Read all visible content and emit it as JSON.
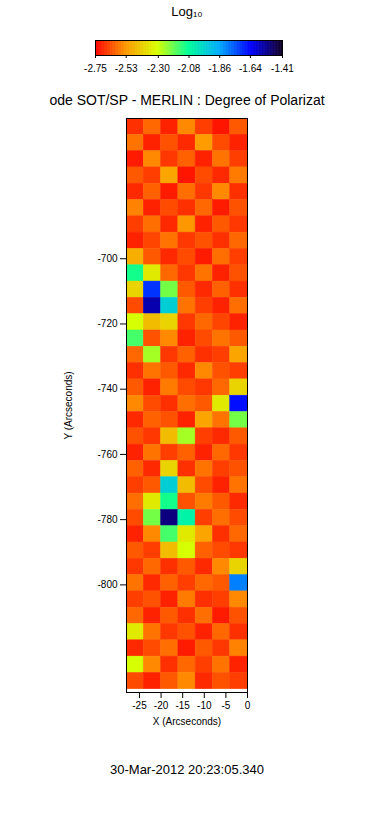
{
  "chart_data": {
    "type": "heatmap",
    "title": "ode SOT/SP - MERLIN : Degree of Polarizat",
    "date": "30-Mar-2012 20:23:05.340",
    "x_label": "X (Arcseconds)",
    "y_label": "Y (Arcseconds)",
    "xlim": [
      -28,
      0
    ],
    "ylim": [
      -833,
      -657
    ],
    "xticks": [
      -25,
      -20,
      -15,
      -10,
      -5,
      0
    ],
    "yticks": [
      -800,
      -780,
      -760,
      -740,
      -720,
      -700
    ],
    "colorbar": {
      "label": "Log₁₀",
      "range": [
        -2.75,
        -1.41
      ],
      "ticks": [
        -2.75,
        -2.53,
        {
          "value": -2.3,
          "label": "-2.30"
        },
        -2.08,
        -1.86,
        -1.64,
        -1.41
      ]
    },
    "x_edges": [
      -28,
      -24,
      -20,
      -16,
      -12,
      -8,
      -4,
      0
    ],
    "y_edges": [
      -657,
      -662,
      -667,
      -672,
      -677,
      -682,
      -687,
      -692,
      -697,
      -702,
      -707,
      -712,
      -717,
      -722,
      -727,
      -732,
      -737,
      -742,
      -747,
      -752,
      -757,
      -762,
      -767,
      -772,
      -777,
      -782,
      -787,
      -792,
      -797,
      -802,
      -807,
      -812,
      -817,
      -822,
      -827,
      -832
    ],
    "z": [
      [
        -2.68,
        -2.6,
        -2.7,
        -2.55,
        -2.66,
        -2.72,
        -2.62
      ],
      [
        -2.58,
        -2.7,
        -2.63,
        -2.69,
        -2.52,
        -2.64,
        -2.7
      ],
      [
        -2.71,
        -2.55,
        -2.67,
        -2.61,
        -2.7,
        -2.58,
        -2.66
      ],
      [
        -2.62,
        -2.66,
        -2.5,
        -2.72,
        -2.64,
        -2.69,
        -2.57
      ],
      [
        -2.69,
        -2.61,
        -2.71,
        -2.59,
        -2.67,
        -2.55,
        -2.68
      ],
      [
        -2.56,
        -2.7,
        -2.64,
        -2.68,
        -2.6,
        -2.71,
        -2.63
      ],
      [
        -2.66,
        -2.59,
        -2.69,
        -2.53,
        -2.7,
        -2.62,
        -2.67
      ],
      [
        -2.7,
        -2.65,
        -2.58,
        -2.67,
        -2.63,
        -2.68,
        -2.6
      ],
      [
        -2.48,
        -2.62,
        -2.69,
        -2.64,
        -2.71,
        -2.59,
        -2.66
      ],
      [
        -2.1,
        -2.35,
        -2.6,
        -2.67,
        -2.58,
        -2.7,
        -2.63
      ],
      [
        -2.4,
        -1.7,
        -2.2,
        -2.62,
        -2.69,
        -2.61,
        -2.68
      ],
      [
        -2.64,
        -1.55,
        -1.95,
        -2.58,
        -2.66,
        -2.7,
        -2.59
      ],
      [
        -2.3,
        -2.45,
        -2.4,
        -2.67,
        -2.6,
        -2.65,
        -2.7
      ],
      [
        -2.15,
        -2.63,
        -2.55,
        -2.7,
        -2.64,
        -2.58,
        -2.62
      ],
      [
        -2.6,
        -2.25,
        -2.67,
        -2.61,
        -2.68,
        -2.66,
        -2.5
      ],
      [
        -2.68,
        -2.58,
        -2.62,
        -2.69,
        -2.55,
        -2.63,
        -2.66
      ],
      [
        -2.62,
        -2.7,
        -2.57,
        -2.64,
        -2.67,
        -2.6,
        -2.4
      ],
      [
        -2.55,
        -2.64,
        -2.68,
        -2.59,
        -2.62,
        -2.35,
        -1.65
      ],
      [
        -2.69,
        -2.61,
        -2.63,
        -2.7,
        -2.5,
        -2.58,
        -2.2
      ],
      [
        -2.63,
        -2.67,
        -2.45,
        -2.25,
        -2.66,
        -2.69,
        -2.62
      ],
      [
        -2.7,
        -2.58,
        -2.66,
        -2.61,
        -2.7,
        -2.6,
        -2.67
      ],
      [
        -2.61,
        -2.69,
        -2.4,
        -2.68,
        -2.58,
        -2.66,
        -2.63
      ],
      [
        -2.66,
        -2.62,
        -1.95,
        -2.45,
        -2.64,
        -2.7,
        -2.58
      ],
      [
        -2.59,
        -2.35,
        -2.1,
        -2.63,
        -2.57,
        -2.62,
        -2.69
      ],
      [
        -2.64,
        -2.2,
        -1.5,
        -2.05,
        -2.66,
        -2.59,
        -2.64
      ],
      [
        -2.7,
        -2.55,
        -2.15,
        -2.35,
        -2.5,
        -2.68,
        -2.6
      ],
      [
        -2.62,
        -2.66,
        -2.45,
        -2.3,
        -2.61,
        -2.64,
        -2.67
      ],
      [
        -2.67,
        -2.6,
        -2.68,
        -2.62,
        -2.69,
        -2.55,
        -2.4
      ],
      [
        -2.58,
        -2.69,
        -2.61,
        -2.66,
        -2.6,
        -2.62,
        -1.8
      ],
      [
        -2.66,
        -2.63,
        -2.7,
        -2.57,
        -2.68,
        -2.66,
        -2.55
      ],
      [
        -2.6,
        -2.7,
        -2.62,
        -2.68,
        -2.59,
        -2.71,
        -2.63
      ],
      [
        -2.35,
        -2.58,
        -2.67,
        -2.63,
        -2.7,
        -2.6,
        -2.68
      ],
      [
        -2.69,
        -2.64,
        -2.59,
        -2.71,
        -2.62,
        -2.67,
        -2.56
      ],
      [
        -2.3,
        -2.55,
        -2.68,
        -2.6,
        -2.66,
        -2.58,
        -2.7
      ],
      [
        -2.64,
        -2.7,
        -2.62,
        -2.55,
        -2.69,
        -2.63,
        -2.66
      ]
    ]
  }
}
